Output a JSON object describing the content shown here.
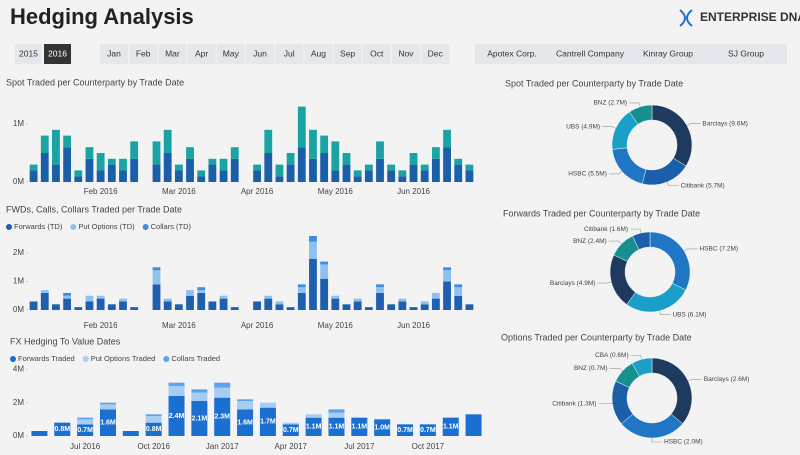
{
  "header": {
    "title": "Hedging Analysis",
    "logo": "ENTERPRISE DNA"
  },
  "slicers": {
    "years": [
      "2015",
      "2016"
    ],
    "months": [
      "Jan",
      "Feb",
      "Mar",
      "Apr",
      "May",
      "Jun",
      "Jul",
      "Aug",
      "Sep",
      "Oct",
      "Nov",
      "Dec"
    ],
    "counterparties": [
      "Apotex Corp.",
      "Cantrell Company",
      "Kinray Group",
      "SJ Group"
    ]
  },
  "chart_data": [
    {
      "type": "bar",
      "title": "Spot Traded per Counterparty by Trade Date",
      "categories": [
        null,
        null,
        null,
        null,
        null,
        null,
        "Feb 2016",
        null,
        null,
        null,
        null,
        null,
        null,
        "Mar 2016",
        null,
        null,
        null,
        null,
        null,
        null,
        "Apr 2016",
        null,
        null,
        null,
        null,
        null,
        null,
        "May 2016",
        null,
        null,
        null,
        null,
        null,
        null,
        "Jun 2016",
        null,
        null,
        null,
        null,
        null
      ],
      "series": [
        {
          "color": "#1b5fa8",
          "values": [
            0.2,
            0.5,
            0.3,
            0.6,
            0.1,
            0.4,
            0.2,
            0.3,
            0.2,
            0.4,
            0,
            0.3,
            0.5,
            0.2,
            0.4,
            0.1,
            0.3,
            0.2,
            0.4,
            0,
            0.2,
            0.5,
            0.1,
            0.3,
            0.6,
            0.4,
            0.5,
            0.2,
            0.3,
            0.1,
            0.2,
            0.4,
            0.2,
            0.1,
            0.3,
            0.2,
            0.4,
            0.6,
            0.3,
            0.2
          ]
        },
        {
          "color": "#1aa3a3",
          "values": [
            0.1,
            0.3,
            0.6,
            0.2,
            0.1,
            0.2,
            0.3,
            0.1,
            0.2,
            0.3,
            0,
            0.4,
            0.4,
            0.1,
            0.2,
            0.1,
            0.1,
            0.2,
            0.2,
            0,
            0.1,
            0.4,
            0.2,
            0.2,
            0.7,
            0.5,
            0.3,
            0.5,
            0.2,
            0.1,
            0.1,
            0.3,
            0.1,
            0.1,
            0.2,
            0.1,
            0.2,
            0.3,
            0.1,
            0.1
          ]
        }
      ],
      "ylim": [
        0,
        1.5
      ],
      "yticks": [
        {
          "value": 0,
          "label": "0M"
        },
        {
          "value": 1,
          "label": "1M"
        }
      ]
    },
    {
      "type": "bar",
      "title": "FWDs, Calls, Collars Traded per Trade Date",
      "categories": [
        null,
        null,
        null,
        null,
        null,
        null,
        "Feb 2016",
        null,
        null,
        null,
        null,
        null,
        null,
        "Mar 2016",
        null,
        null,
        null,
        null,
        null,
        null,
        "Apr 2016",
        null,
        null,
        null,
        null,
        null,
        null,
        "May 2016",
        null,
        null,
        null,
        null,
        null,
        null,
        "Jun 2016",
        null,
        null,
        null,
        null,
        null
      ],
      "series": [
        {
          "name": "Forwards (TD)",
          "color": "#1f5fb0",
          "values": [
            0.3,
            0.6,
            0.2,
            0.4,
            0.1,
            0.3,
            0.4,
            0.2,
            0.3,
            0.1,
            0,
            0.9,
            0.3,
            0.2,
            0.5,
            0.6,
            0.3,
            0.4,
            0.1,
            0,
            0.3,
            0.4,
            0.2,
            0.1,
            0.6,
            1.8,
            1.1,
            0.4,
            0.2,
            0.3,
            0.1,
            0.6,
            0.2,
            0.3,
            0.1,
            0.2,
            0.4,
            1.0,
            0.5,
            0.2
          ]
        },
        {
          "name": "Put Options (TD)",
          "color": "#8ec1ee",
          "values": [
            0,
            0.1,
            0,
            0.1,
            0,
            0.2,
            0.1,
            0,
            0.1,
            0,
            0,
            0.5,
            0.1,
            0,
            0.2,
            0.1,
            0,
            0.1,
            0,
            0,
            0,
            0.1,
            0.1,
            0,
            0.2,
            0.6,
            0.5,
            0.1,
            0,
            0.1,
            0,
            0.2,
            0,
            0.1,
            0,
            0.1,
            0.2,
            0.4,
            0.3,
            0
          ]
        },
        {
          "name": "Collars (TD)",
          "color": "#3c8ee0",
          "values": [
            0,
            0,
            0,
            0.1,
            0,
            0,
            0,
            0,
            0,
            0,
            0,
            0.1,
            0,
            0,
            0,
            0.1,
            0,
            0,
            0,
            0,
            0,
            0,
            0,
            0,
            0.1,
            0.2,
            0.1,
            0,
            0,
            0,
            0,
            0.1,
            0,
            0,
            0,
            0,
            0,
            0.1,
            0.1,
            0
          ]
        }
      ],
      "legend": "top-left",
      "ylim": [
        0,
        2.6
      ],
      "yticks": [
        {
          "value": 0,
          "label": "0M"
        },
        {
          "value": 1,
          "label": "1M"
        },
        {
          "value": 2,
          "label": "2M"
        }
      ]
    },
    {
      "type": "bar",
      "title": "FX Hedging To Value Dates",
      "categories": [
        null,
        null,
        "Jul 2016",
        null,
        null,
        "Oct 2016",
        null,
        null,
        "Jan 2017",
        null,
        null,
        "Apr 2017",
        null,
        null,
        "Jul 2017",
        null,
        null,
        "Oct 2017",
        null,
        null
      ],
      "series": [
        {
          "name": "Forwards Traded",
          "color": "#1a6fd0",
          "values": [
            0.3,
            0.8,
            0.7,
            1.6,
            0.3,
            0.8,
            2.4,
            2.1,
            2.3,
            1.6,
            1.7,
            0.7,
            1.1,
            1.1,
            1.1,
            1.0,
            0.7,
            0.7,
            1.1,
            1.3
          ],
          "value_labels": [
            null,
            "0.8M",
            "0.7M",
            "1.6M",
            null,
            "0.8M",
            "2.4M",
            "2.1M",
            "2.3M",
            "1.6M",
            "1.7M",
            "0.7M",
            "1.1M",
            "1.1M",
            "1.1M",
            "1.0M",
            "0.7M",
            "0.7M",
            "1.1M",
            null
          ]
        },
        {
          "name": "Put Options Traded",
          "color": "#a7cdf2",
          "values": [
            0,
            0,
            0.3,
            0.3,
            0,
            0.4,
            0.6,
            0.5,
            0.6,
            0.5,
            0.3,
            0.1,
            0.2,
            0.3,
            0,
            0,
            0,
            0,
            0,
            0
          ]
        },
        {
          "name": "Collars Traded",
          "color": "#5aa4ec",
          "values": [
            0,
            0,
            0.1,
            0.1,
            0,
            0.1,
            0.2,
            0.2,
            0.3,
            0.1,
            0,
            0,
            0,
            0.2,
            0,
            0,
            0,
            0,
            0,
            0
          ]
        }
      ],
      "legend": "top-left",
      "ylim": [
        0,
        4.2
      ],
      "yticks": [
        {
          "value": 0,
          "label": "0M"
        },
        {
          "value": 2,
          "label": "2M"
        },
        {
          "value": 4,
          "label": "4M"
        }
      ]
    },
    {
      "type": "pie",
      "title": "Spot Traded per Counterparty by Trade Date",
      "labels": [
        "Barclays (9.6M)",
        "Citibank (5.7M)",
        "HSBC (5.5M)",
        "UBS (4.9M)",
        "BNZ (2.7M)"
      ],
      "values": [
        9.6,
        5.7,
        5.5,
        4.9,
        2.7
      ],
      "colors": [
        "#1f3a5f",
        "#1b5fa8",
        "#1f76c4",
        "#1aa0c8",
        "#15908f"
      ]
    },
    {
      "type": "pie",
      "title": "Forwards Traded per Counterparty by Trade Date",
      "labels": [
        "HSBC (7.2M)",
        "UBS (6.1M)",
        "Barclays (4.9M)",
        "BNZ (2.4M)",
        "Citibank (1.6M)"
      ],
      "values": [
        7.2,
        6.1,
        4.9,
        2.4,
        1.6
      ],
      "colors": [
        "#1f76c4",
        "#1aa0c8",
        "#1f3a5f",
        "#15908f",
        "#1b5fa8"
      ]
    },
    {
      "type": "pie",
      "title": "Options Traded per Counterparty by Trade Date",
      "labels": [
        "Barclays (2.6M)",
        "HSBC (2.0M)",
        "Citibank (1.3M)",
        "BNZ (0.7M)",
        "CBA (0.6M)"
      ],
      "values": [
        2.6,
        2.0,
        1.3,
        0.7,
        0.6
      ],
      "colors": [
        "#1f3a5f",
        "#1f76c4",
        "#1b5fa8",
        "#15908f",
        "#1aa0c8"
      ]
    }
  ]
}
